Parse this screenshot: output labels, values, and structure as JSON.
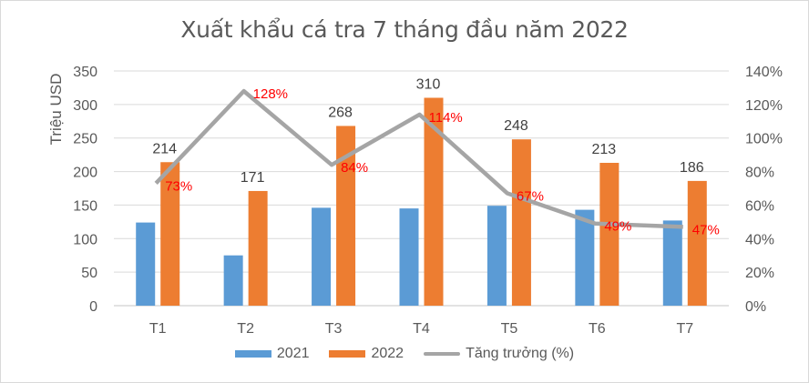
{
  "chart_data": {
    "type": "bar+line",
    "title": "Xuất khẩu cá tra 7 tháng đầu năm 2022",
    "xlabel": "",
    "ylabel": "Triệu USD",
    "y2label": "",
    "categories": [
      "T1",
      "T2",
      "T3",
      "T4",
      "T5",
      "T6",
      "T7"
    ],
    "series": [
      {
        "name": "2021",
        "type": "bar",
        "axis": "left",
        "color": "#5B9BD5",
        "values": [
          124,
          75,
          146,
          145,
          149,
          143,
          127
        ]
      },
      {
        "name": "2022",
        "type": "bar",
        "axis": "left",
        "color": "#ED7D31",
        "values": [
          214,
          171,
          268,
          310,
          248,
          213,
          186
        ],
        "labels": [
          "214",
          "171",
          "268",
          "310",
          "248",
          "213",
          "186"
        ]
      },
      {
        "name": "Tăng trưởng (%)",
        "type": "line",
        "axis": "right",
        "color": "#A5A5A5",
        "values": [
          73,
          128,
          84,
          114,
          67,
          49,
          47
        ],
        "labels": [
          "73%",
          "128%",
          "84%",
          "114%",
          "67%",
          "49%",
          "47%"
        ],
        "label_color": "#FF0000"
      }
    ],
    "ylim": [
      0,
      350
    ],
    "yticks": [
      "0",
      "50",
      "100",
      "150",
      "200",
      "250",
      "300",
      "350"
    ],
    "y2lim": [
      0,
      140
    ],
    "y2ticks": [
      "0%",
      "20%",
      "40%",
      "60%",
      "80%",
      "100%",
      "120%",
      "140%"
    ],
    "grid": true,
    "legend_position": "bottom"
  },
  "legend": {
    "items": [
      "2021",
      "2022",
      "Tăng trưởng (%)"
    ]
  }
}
